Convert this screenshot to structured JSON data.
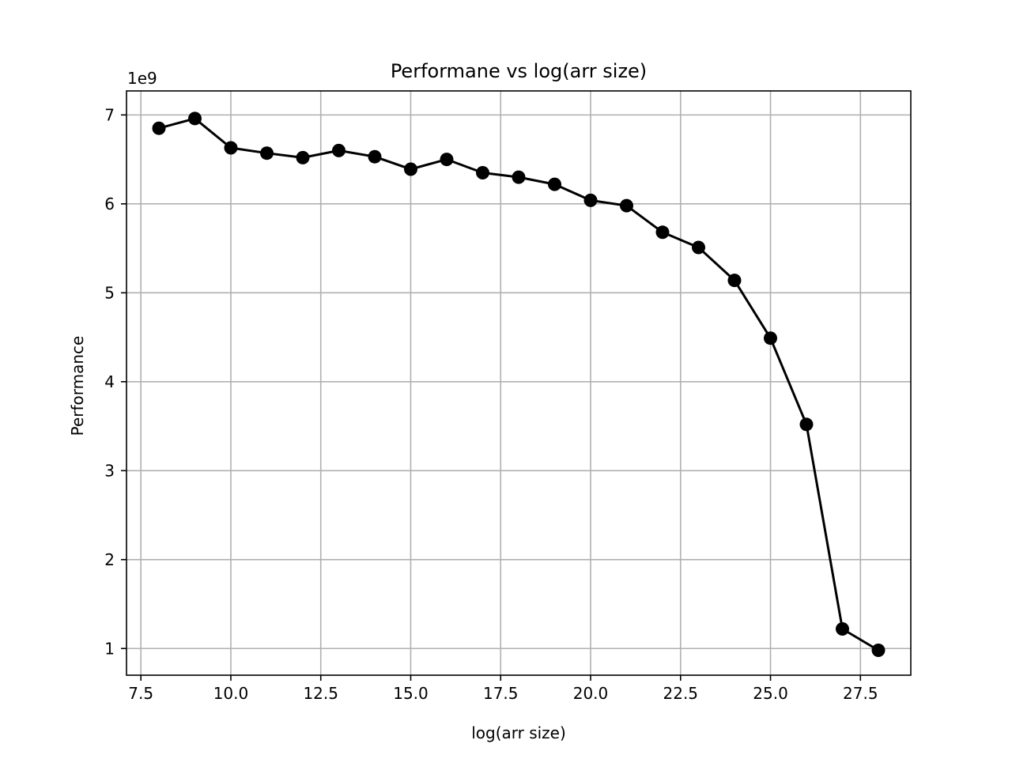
{
  "chart_data": {
    "type": "line",
    "title": "Performane vs log(arr size)",
    "xlabel": "log(arr size)",
    "ylabel": "Performance",
    "y_offset_label": "1e9",
    "xlim": [
      7.1,
      28.9
    ],
    "ylim": [
      0.7,
      7.27
    ],
    "x_ticks": [
      7.5,
      10.0,
      12.5,
      15.0,
      17.5,
      20.0,
      22.5,
      25.0,
      27.5
    ],
    "x_tick_labels": [
      "7.5",
      "10.0",
      "12.5",
      "15.0",
      "17.5",
      "20.0",
      "22.5",
      "25.0",
      "27.5"
    ],
    "y_ticks": [
      1,
      2,
      3,
      4,
      5,
      6,
      7
    ],
    "y_tick_labels": [
      "1",
      "2",
      "3",
      "4",
      "5",
      "6",
      "7"
    ],
    "grid": true,
    "series": [
      {
        "color": "#000000",
        "marker": "circle",
        "x": [
          8,
          9,
          10,
          11,
          12,
          13,
          14,
          15,
          16,
          17,
          18,
          19,
          20,
          21,
          22,
          23,
          24,
          25,
          26,
          27,
          28
        ],
        "y": [
          6.85,
          6.96,
          6.63,
          6.57,
          6.52,
          6.6,
          6.53,
          6.39,
          6.5,
          6.35,
          6.3,
          6.22,
          6.04,
          5.98,
          5.68,
          5.51,
          5.14,
          4.49,
          3.52,
          1.22,
          0.98
        ]
      }
    ]
  }
}
